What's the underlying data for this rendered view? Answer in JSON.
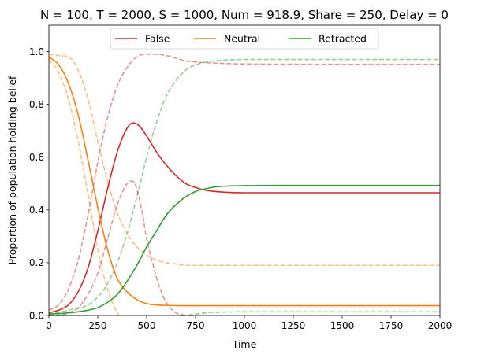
{
  "chart_data": {
    "type": "line",
    "title": "N = 100, T = 2000, S = 1000, Num = 918.9, Share = 250, Delay = 0",
    "xlabel": "Time",
    "ylabel": "Proportion of population holding belief",
    "xlim": [
      0,
      2000
    ],
    "ylim": [
      0,
      1.1
    ],
    "x_ticks": [
      0,
      250,
      500,
      750,
      1000,
      1250,
      1500,
      1750,
      2000
    ],
    "x_tick_labels": [
      "0",
      "250",
      "500",
      "750",
      "1000",
      "1250",
      "1500",
      "1750",
      "2000"
    ],
    "y_ticks": [
      0,
      0.2,
      0.4,
      0.6,
      0.8,
      1.0
    ],
    "y_tick_labels": [
      "0.0",
      "0.2",
      "0.4",
      "0.6",
      "0.8",
      "1.0"
    ],
    "legend": {
      "position": "upper center",
      "entries": [
        "False",
        "Neutral",
        "Retracted"
      ]
    },
    "series": [
      {
        "name": "False",
        "style": "solid",
        "color": "#d62728",
        "in_legend": true,
        "x": [
          0,
          50,
          100,
          150,
          200,
          250,
          300,
          350,
          400,
          430,
          460,
          500,
          550,
          600,
          650,
          700,
          750,
          800,
          900,
          1000,
          1200,
          1500,
          2000
        ],
        "y": [
          0.01,
          0.02,
          0.04,
          0.09,
          0.18,
          0.32,
          0.48,
          0.62,
          0.71,
          0.73,
          0.72,
          0.68,
          0.62,
          0.57,
          0.53,
          0.5,
          0.485,
          0.475,
          0.467,
          0.465,
          0.465,
          0.465,
          0.465
        ]
      },
      {
        "name": "Neutral",
        "style": "solid",
        "color": "#ff7f0e",
        "in_legend": true,
        "x": [
          0,
          50,
          100,
          150,
          200,
          250,
          300,
          350,
          400,
          450,
          500,
          550,
          600,
          700,
          800,
          1000,
          1500,
          2000
        ],
        "y": [
          0.98,
          0.95,
          0.88,
          0.76,
          0.59,
          0.41,
          0.25,
          0.14,
          0.09,
          0.06,
          0.045,
          0.04,
          0.038,
          0.037,
          0.037,
          0.037,
          0.037,
          0.037
        ]
      },
      {
        "name": "Retracted",
        "style": "solid",
        "color": "#2ca02c",
        "in_legend": true,
        "x": [
          0,
          100,
          200,
          250,
          300,
          350,
          400,
          450,
          500,
          550,
          600,
          650,
          700,
          750,
          800,
          850,
          900,
          1000,
          1200,
          1500,
          2000
        ],
        "y": [
          0.005,
          0.01,
          0.02,
          0.03,
          0.05,
          0.08,
          0.13,
          0.19,
          0.26,
          0.32,
          0.38,
          0.42,
          0.45,
          0.47,
          0.48,
          0.487,
          0.49,
          0.492,
          0.493,
          0.493,
          0.493
        ]
      },
      {
        "name": "False upper band",
        "style": "dashed",
        "color": "#d62728",
        "opacity": 0.5,
        "in_legend": false,
        "x": [
          0,
          50,
          100,
          150,
          200,
          250,
          300,
          350,
          400,
          450,
          500,
          550,
          600,
          650,
          700,
          800,
          900,
          1000,
          1500,
          2000
        ],
        "y": [
          0.02,
          0.04,
          0.1,
          0.21,
          0.38,
          0.58,
          0.75,
          0.87,
          0.94,
          0.98,
          0.99,
          0.99,
          0.985,
          0.975,
          0.965,
          0.958,
          0.955,
          0.953,
          0.952,
          0.952
        ]
      },
      {
        "name": "False lower band",
        "style": "dashed",
        "color": "#d62728",
        "opacity": 0.5,
        "in_legend": false,
        "x": [
          0,
          50,
          100,
          150,
          200,
          250,
          300,
          350,
          400,
          420,
          440,
          460,
          480,
          500,
          530,
          560,
          600,
          650,
          700,
          750,
          800,
          850
        ],
        "y": [
          0.0,
          0.0,
          0.01,
          0.03,
          0.08,
          0.16,
          0.29,
          0.42,
          0.5,
          0.51,
          0.5,
          0.45,
          0.38,
          0.29,
          0.2,
          0.12,
          0.05,
          0.01,
          0.0,
          -0.02,
          -0.04,
          -0.05
        ]
      },
      {
        "name": "Neutral upper band",
        "style": "dashed",
        "color": "#ff7f0e",
        "opacity": 0.5,
        "in_legend": false,
        "x": [
          0,
          50,
          100,
          150,
          200,
          250,
          300,
          350,
          400,
          450,
          500,
          550,
          600,
          650,
          700,
          800,
          1000,
          1500,
          2000
        ],
        "y": [
          0.99,
          0.985,
          0.98,
          0.93,
          0.82,
          0.66,
          0.51,
          0.39,
          0.31,
          0.26,
          0.23,
          0.21,
          0.2,
          0.195,
          0.19,
          0.19,
          0.19,
          0.19,
          0.19
        ]
      },
      {
        "name": "Neutral lower band",
        "style": "dashed",
        "color": "#ff7f0e",
        "opacity": 0.5,
        "in_legend": false,
        "x": [
          0,
          50,
          100,
          150,
          200,
          250,
          300,
          350,
          400,
          450,
          500
        ],
        "y": [
          0.97,
          0.92,
          0.82,
          0.66,
          0.46,
          0.25,
          0.1,
          0.01,
          -0.04,
          -0.07,
          -0.09
        ]
      },
      {
        "name": "Retracted upper band",
        "style": "dashed",
        "color": "#2ca02c",
        "opacity": 0.5,
        "in_legend": false,
        "x": [
          0,
          100,
          200,
          250,
          300,
          350,
          400,
          450,
          500,
          550,
          600,
          650,
          700,
          750,
          800,
          850,
          900,
          950,
          1000,
          1200,
          1500,
          2000
        ],
        "y": [
          0.005,
          0.02,
          0.04,
          0.07,
          0.12,
          0.2,
          0.31,
          0.45,
          0.6,
          0.73,
          0.83,
          0.89,
          0.93,
          0.95,
          0.96,
          0.965,
          0.968,
          0.969,
          0.97,
          0.97,
          0.97,
          0.97
        ]
      },
      {
        "name": "Retracted lower band",
        "style": "dashed",
        "color": "#2ca02c",
        "opacity": 0.5,
        "in_legend": false,
        "x": [
          0,
          100,
          200,
          300,
          400,
          500,
          550,
          600,
          650,
          700,
          750,
          800,
          850,
          900,
          1000,
          1200,
          1500,
          2000
        ],
        "y": [
          0.0,
          0.0,
          0.0,
          -0.02,
          -0.04,
          -0.04,
          -0.03,
          -0.02,
          -0.01,
          0.0,
          0.005,
          0.01,
          0.012,
          0.013,
          0.014,
          0.014,
          0.014,
          0.014
        ]
      }
    ]
  }
}
